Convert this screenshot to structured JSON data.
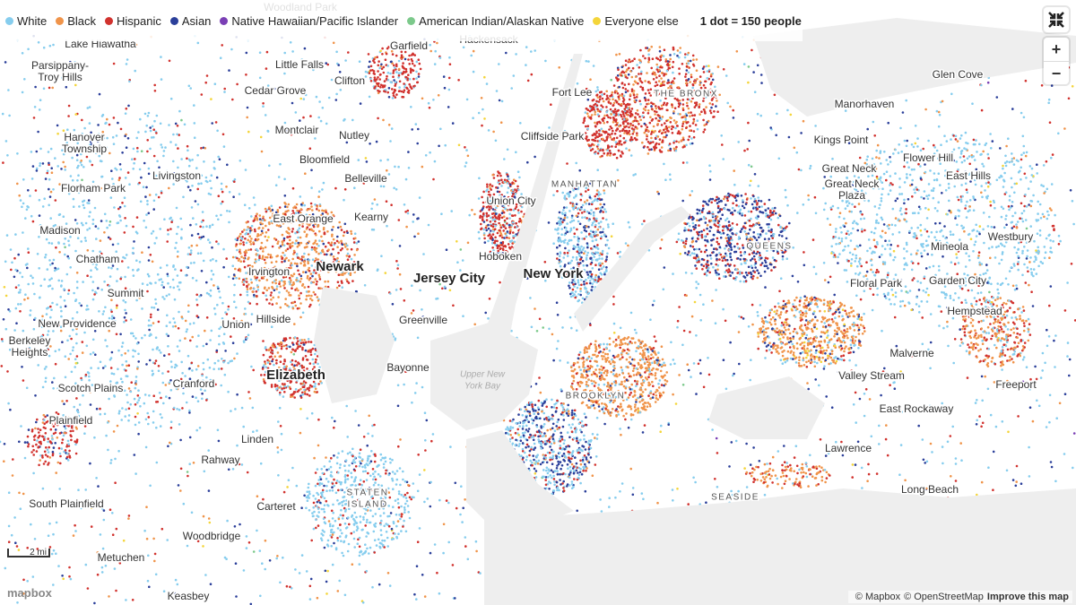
{
  "legend": {
    "items": [
      {
        "name": "White",
        "color": "#86cdee"
      },
      {
        "name": "Black",
        "color": "#f0944a"
      },
      {
        "name": "Hispanic",
        "color": "#d1322e"
      },
      {
        "name": "Asian",
        "color": "#2b3f9a"
      },
      {
        "name": "Native Hawaiian/Pacific Islander",
        "color": "#7a3fb5"
      },
      {
        "name": "American Indian/Alaskan Native",
        "color": "#7cc98b"
      },
      {
        "name": "Everyone else",
        "color": "#f4d53a"
      }
    ],
    "scale": "1 dot = 150 people"
  },
  "controls": {
    "zoom_in": "+",
    "zoom_out": "−"
  },
  "places": [
    {
      "lines": [
        "Woodland Park"
      ]
    },
    {
      "lines": [
        "Lake Hiawatha"
      ]
    },
    {
      "lines": [
        "Garfield"
      ]
    },
    {
      "lines": [
        "Hackensack"
      ]
    },
    {
      "lines": [
        "Parsippany-",
        "Troy Hills"
      ]
    },
    {
      "lines": [
        "Little Falls"
      ]
    },
    {
      "lines": [
        "Clifton"
      ]
    },
    {
      "lines": [
        "Cedar Grove"
      ]
    },
    {
      "lines": [
        "Fort Lee"
      ]
    },
    {
      "lines": [
        "THE BRONX"
      ]
    },
    {
      "lines": [
        "Glen Cove"
      ]
    },
    {
      "lines": [
        "Manorhaven"
      ]
    },
    {
      "lines": [
        "Kings Point"
      ]
    },
    {
      "lines": [
        "Flower Hill"
      ]
    },
    {
      "lines": [
        "Great Neck"
      ]
    },
    {
      "lines": [
        "Great Neck",
        "Plaza"
      ]
    },
    {
      "lines": [
        "East Hills"
      ]
    },
    {
      "lines": [
        "Montclair"
      ]
    },
    {
      "lines": [
        "Nutley"
      ]
    },
    {
      "lines": [
        "Hanover",
        "Township"
      ]
    },
    {
      "lines": [
        "Cliffside Park"
      ]
    },
    {
      "lines": [
        "Bloomfield"
      ]
    },
    {
      "lines": [
        "Belleville"
      ]
    },
    {
      "lines": [
        "Livingston"
      ]
    },
    {
      "lines": [
        "Florham Park"
      ]
    },
    {
      "lines": [
        "MANHATTAN"
      ]
    },
    {
      "lines": [
        "Union City"
      ]
    },
    {
      "lines": [
        "East Orange"
      ]
    },
    {
      "lines": [
        "Kearny"
      ]
    },
    {
      "lines": [
        "Madison"
      ]
    },
    {
      "lines": [
        "QUEENS"
      ]
    },
    {
      "lines": [
        "Mineola"
      ]
    },
    {
      "lines": [
        "Westbury"
      ]
    },
    {
      "lines": [
        "Hoboken"
      ]
    },
    {
      "lines": [
        "Chatham"
      ]
    },
    {
      "lines": [
        "Newark"
      ]
    },
    {
      "lines": [
        "Irvington"
      ]
    },
    {
      "lines": [
        "Jersey City"
      ]
    },
    {
      "lines": [
        "New York"
      ]
    },
    {
      "lines": [
        "Floral Park"
      ]
    },
    {
      "lines": [
        "Garden City"
      ]
    },
    {
      "lines": [
        "Summit"
      ]
    },
    {
      "lines": [
        "Hillside"
      ]
    },
    {
      "lines": [
        "Union"
      ]
    },
    {
      "lines": [
        "Greenville"
      ]
    },
    {
      "lines": [
        "New Providence"
      ]
    },
    {
      "lines": [
        "Hempstead"
      ]
    },
    {
      "lines": [
        "Berkeley",
        "Heights"
      ]
    },
    {
      "lines": [
        "Malverne"
      ]
    },
    {
      "lines": [
        "Bayonne"
      ]
    },
    {
      "lines": [
        "Elizabeth"
      ]
    },
    {
      "lines": [
        "Valley Stream"
      ]
    },
    {
      "lines": [
        "Cranford"
      ]
    },
    {
      "lines": [
        "Upper New",
        "York Bay"
      ]
    },
    {
      "lines": [
        "BROOKLYN"
      ]
    },
    {
      "lines": [
        "Freeport"
      ]
    },
    {
      "lines": [
        "Scotch Plains"
      ]
    },
    {
      "lines": [
        "East Rockaway"
      ]
    },
    {
      "lines": [
        "Plainfield"
      ]
    },
    {
      "lines": [
        "Linden"
      ]
    },
    {
      "lines": [
        "Lawrence"
      ]
    },
    {
      "lines": [
        "Rahway"
      ]
    },
    {
      "lines": [
        "STATEN",
        "ISLAND"
      ]
    },
    {
      "lines": [
        "SEASIDE"
      ]
    },
    {
      "lines": [
        "Long Beach"
      ]
    },
    {
      "lines": [
        "South Plainfield"
      ]
    },
    {
      "lines": [
        "Carteret"
      ]
    },
    {
      "lines": [
        "Woodbridge"
      ]
    },
    {
      "lines": [
        "Metuchen"
      ]
    },
    {
      "lines": [
        "Keasbey"
      ]
    }
  ],
  "scale_bar": "2 mi",
  "logo": "mapbox",
  "attribution": [
    "© Mapbox",
    "© OpenStreetMap",
    "Improve this map"
  ]
}
